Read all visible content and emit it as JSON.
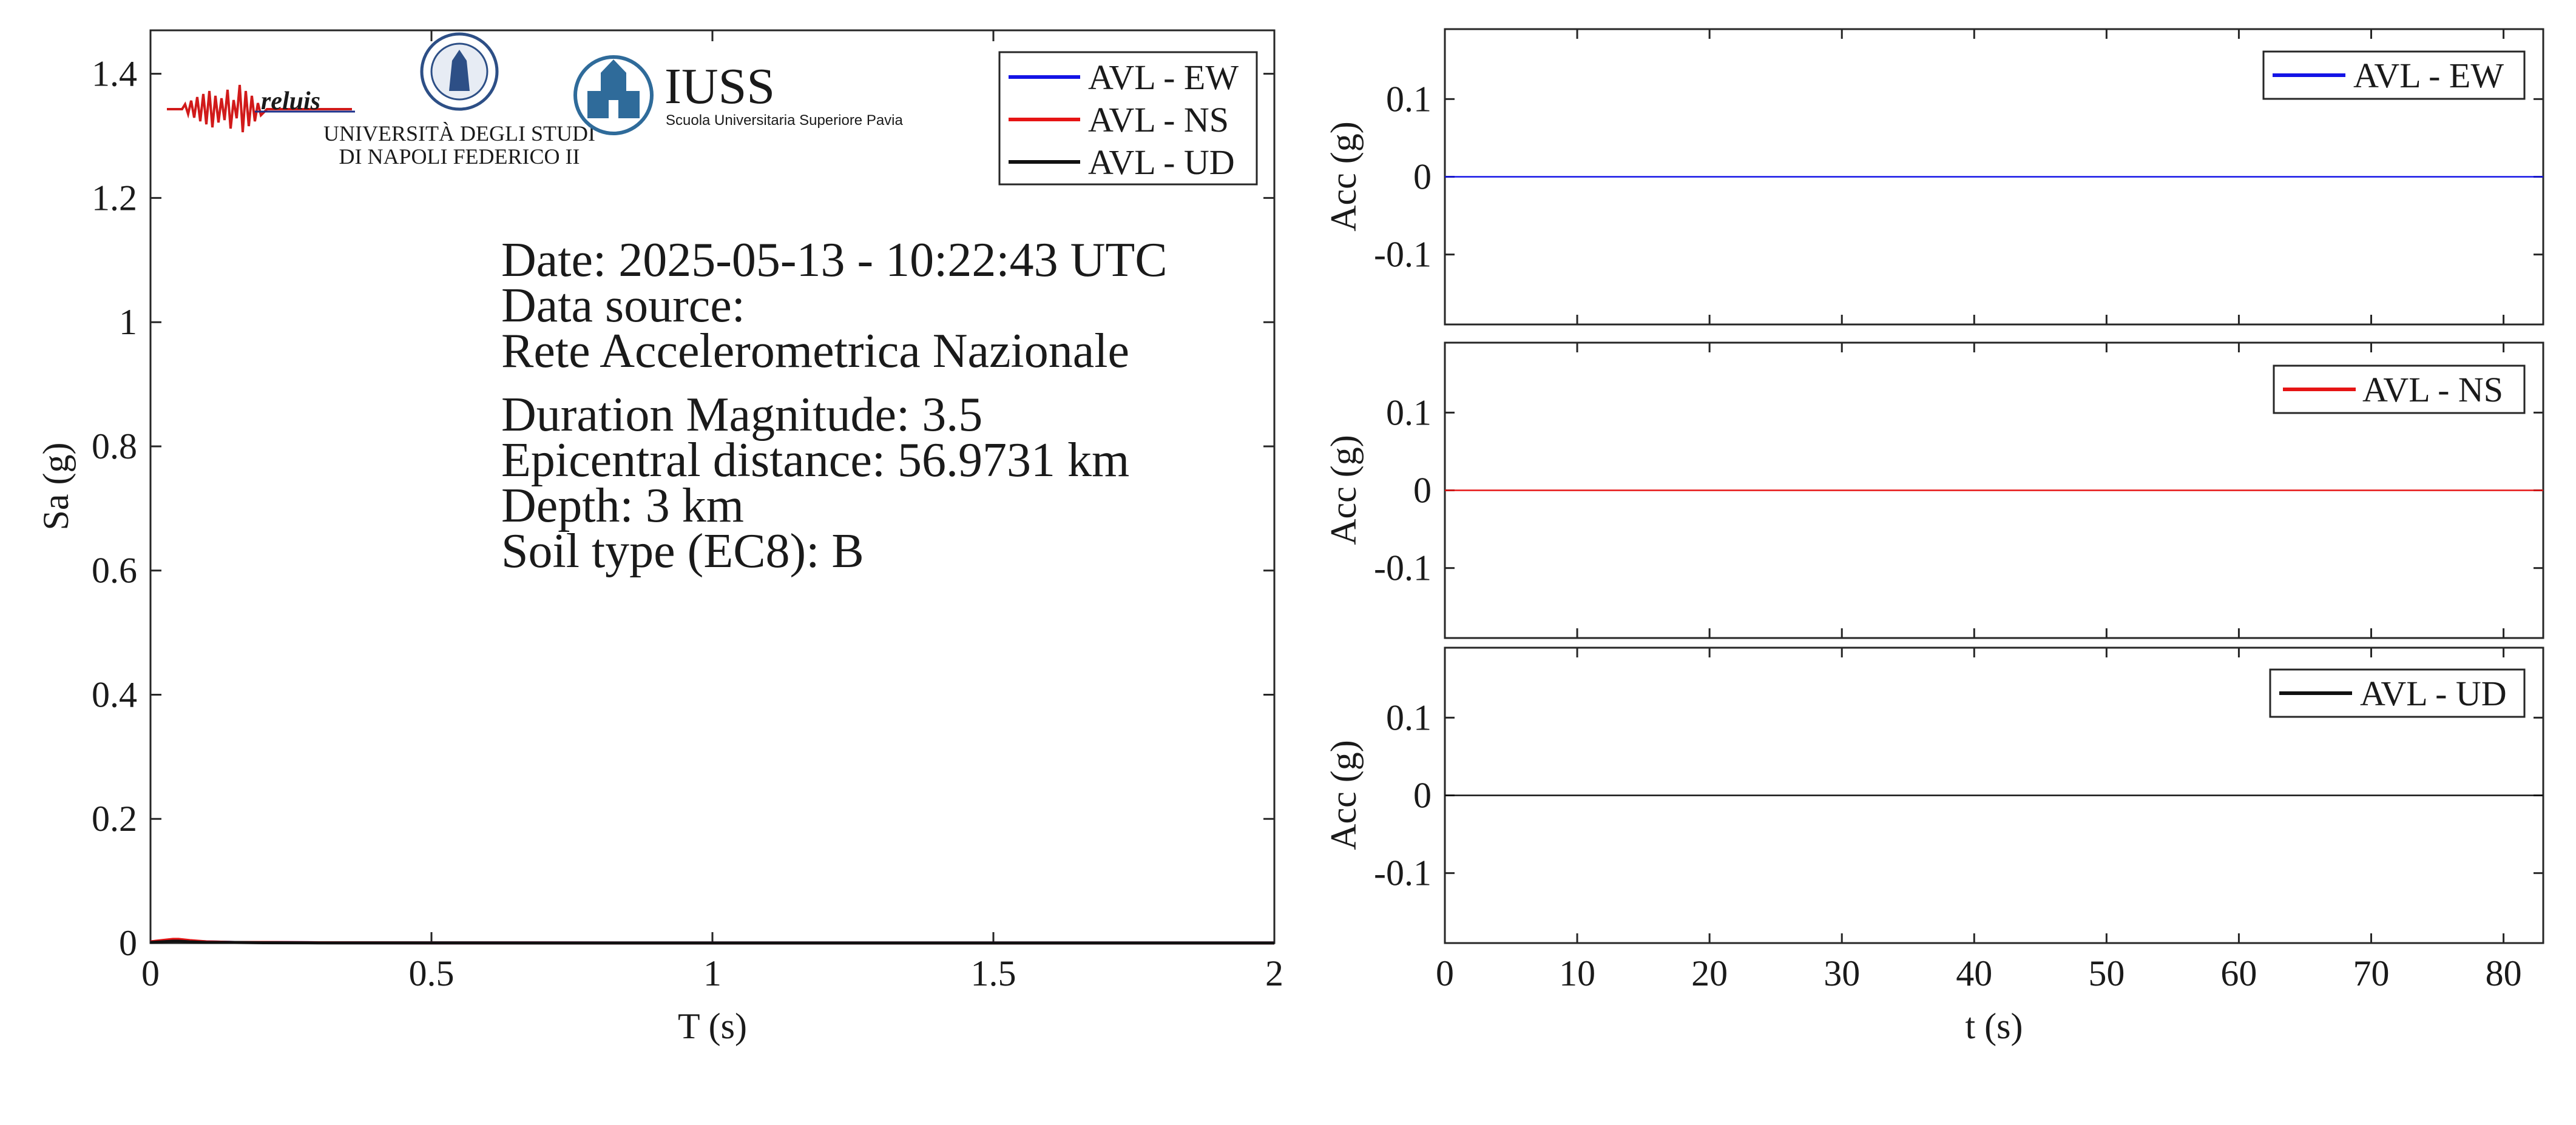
{
  "info": {
    "date": "Date: 2025-05-13 - 10:22:43 UTC",
    "source_label": "Data source:",
    "source_name": "Rete Accelerometrica Nazionale",
    "magnitude": "Duration Magnitude: 3.5",
    "distance": "Epicentral distance: 56.9731 km",
    "depth": "Depth: 3 km",
    "soil": "Soil type (EC8): B"
  },
  "logos": {
    "reluis": "reluis",
    "unina_line1": "UNIVERSITÀ DEGLI STUDI",
    "unina_line2": "DI NAPOLI FEDERICO II",
    "iuss": "IUSS",
    "iuss_sub": "Scuola Universitaria Superiore Pavia"
  },
  "colors": {
    "EW": "#1414e6",
    "NS": "#e61414",
    "UD": "#111111",
    "axis": "#262626"
  },
  "chart_data": [
    {
      "type": "line",
      "id": "spectrum",
      "xlabel": "T (s)",
      "ylabel": "Sa (g)",
      "xlim": [
        0,
        2
      ],
      "ylim": [
        0,
        1.47
      ],
      "xticks": [
        0,
        0.5,
        1,
        1.5,
        2
      ],
      "xtick_labels": [
        "0",
        "0.5",
        "1",
        "1.5",
        "2"
      ],
      "yticks": [
        0,
        0.2,
        0.4,
        0.6,
        0.8,
        1,
        1.2,
        1.4
      ],
      "ytick_labels": [
        "0",
        "0.2",
        "0.4",
        "0.6",
        "0.8",
        "1",
        "1.2",
        "1.4"
      ],
      "legend_position": "top-right",
      "series": [
        {
          "name": "AVL - EW",
          "color": "#1414e6",
          "x": [
            0,
            0.02,
            0.04,
            0.05,
            0.07,
            0.1,
            0.15,
            0.2,
            0.3,
            0.5,
            1,
            1.5,
            2
          ],
          "y": [
            0.002,
            0.003,
            0.004,
            0.004,
            0.003,
            0.002,
            0.001,
            0.001,
            0.0005,
            0.0003,
            0.0001,
            0.0001,
            0.0001
          ]
        },
        {
          "name": "AVL - NS",
          "color": "#e61414",
          "x": [
            0,
            0.02,
            0.04,
            0.05,
            0.07,
            0.1,
            0.15,
            0.2,
            0.3,
            0.5,
            1,
            1.5,
            2
          ],
          "y": [
            0.002,
            0.004,
            0.006,
            0.006,
            0.004,
            0.002,
            0.001,
            0.001,
            0.0005,
            0.0003,
            0.0001,
            0.0001,
            0.0001
          ]
        },
        {
          "name": "AVL - UD",
          "color": "#111111",
          "x": [
            0,
            0.02,
            0.04,
            0.05,
            0.07,
            0.1,
            0.15,
            0.2,
            0.3,
            0.5,
            1,
            1.5,
            2
          ],
          "y": [
            0.001,
            0.002,
            0.003,
            0.003,
            0.002,
            0.001,
            0.001,
            0.0005,
            0.0003,
            0.0002,
            0.0001,
            0.0001,
            0.0001
          ]
        }
      ]
    },
    {
      "type": "line",
      "id": "acc-ew",
      "xlabel": "",
      "ylabel": "Acc (g)",
      "xlim": [
        0,
        83
      ],
      "ylim": [
        -0.19,
        0.19
      ],
      "yticks": [
        -0.1,
        0,
        0.1
      ],
      "ytick_labels": [
        "-0.1",
        "0",
        "0.1"
      ],
      "legend_position": "top-right",
      "series": [
        {
          "name": "AVL - EW",
          "color": "#1414e6",
          "x": [
            0,
            83
          ],
          "y": [
            0,
            0
          ]
        }
      ]
    },
    {
      "type": "line",
      "id": "acc-ns",
      "xlabel": "",
      "ylabel": "Acc (g)",
      "xlim": [
        0,
        83
      ],
      "ylim": [
        -0.19,
        0.19
      ],
      "yticks": [
        -0.1,
        0,
        0.1
      ],
      "ytick_labels": [
        "-0.1",
        "0",
        "0.1"
      ],
      "legend_position": "top-right",
      "series": [
        {
          "name": "AVL - NS",
          "color": "#e61414",
          "x": [
            0,
            83
          ],
          "y": [
            0,
            0
          ]
        }
      ]
    },
    {
      "type": "line",
      "id": "acc-ud",
      "xlabel": "t (s)",
      "ylabel": "Acc (g)",
      "xlim": [
        0,
        83
      ],
      "ylim": [
        -0.19,
        0.19
      ],
      "xticks": [
        0,
        10,
        20,
        30,
        40,
        50,
        60,
        70,
        80
      ],
      "xtick_labels": [
        "0",
        "10",
        "20",
        "30",
        "40",
        "50",
        "60",
        "70",
        "80"
      ],
      "yticks": [
        -0.1,
        0,
        0.1
      ],
      "ytick_labels": [
        "-0.1",
        "0",
        "0.1"
      ],
      "legend_position": "top-right",
      "series": [
        {
          "name": "AVL - UD",
          "color": "#111111",
          "x": [
            0,
            83
          ],
          "y": [
            0,
            0
          ]
        }
      ]
    }
  ]
}
